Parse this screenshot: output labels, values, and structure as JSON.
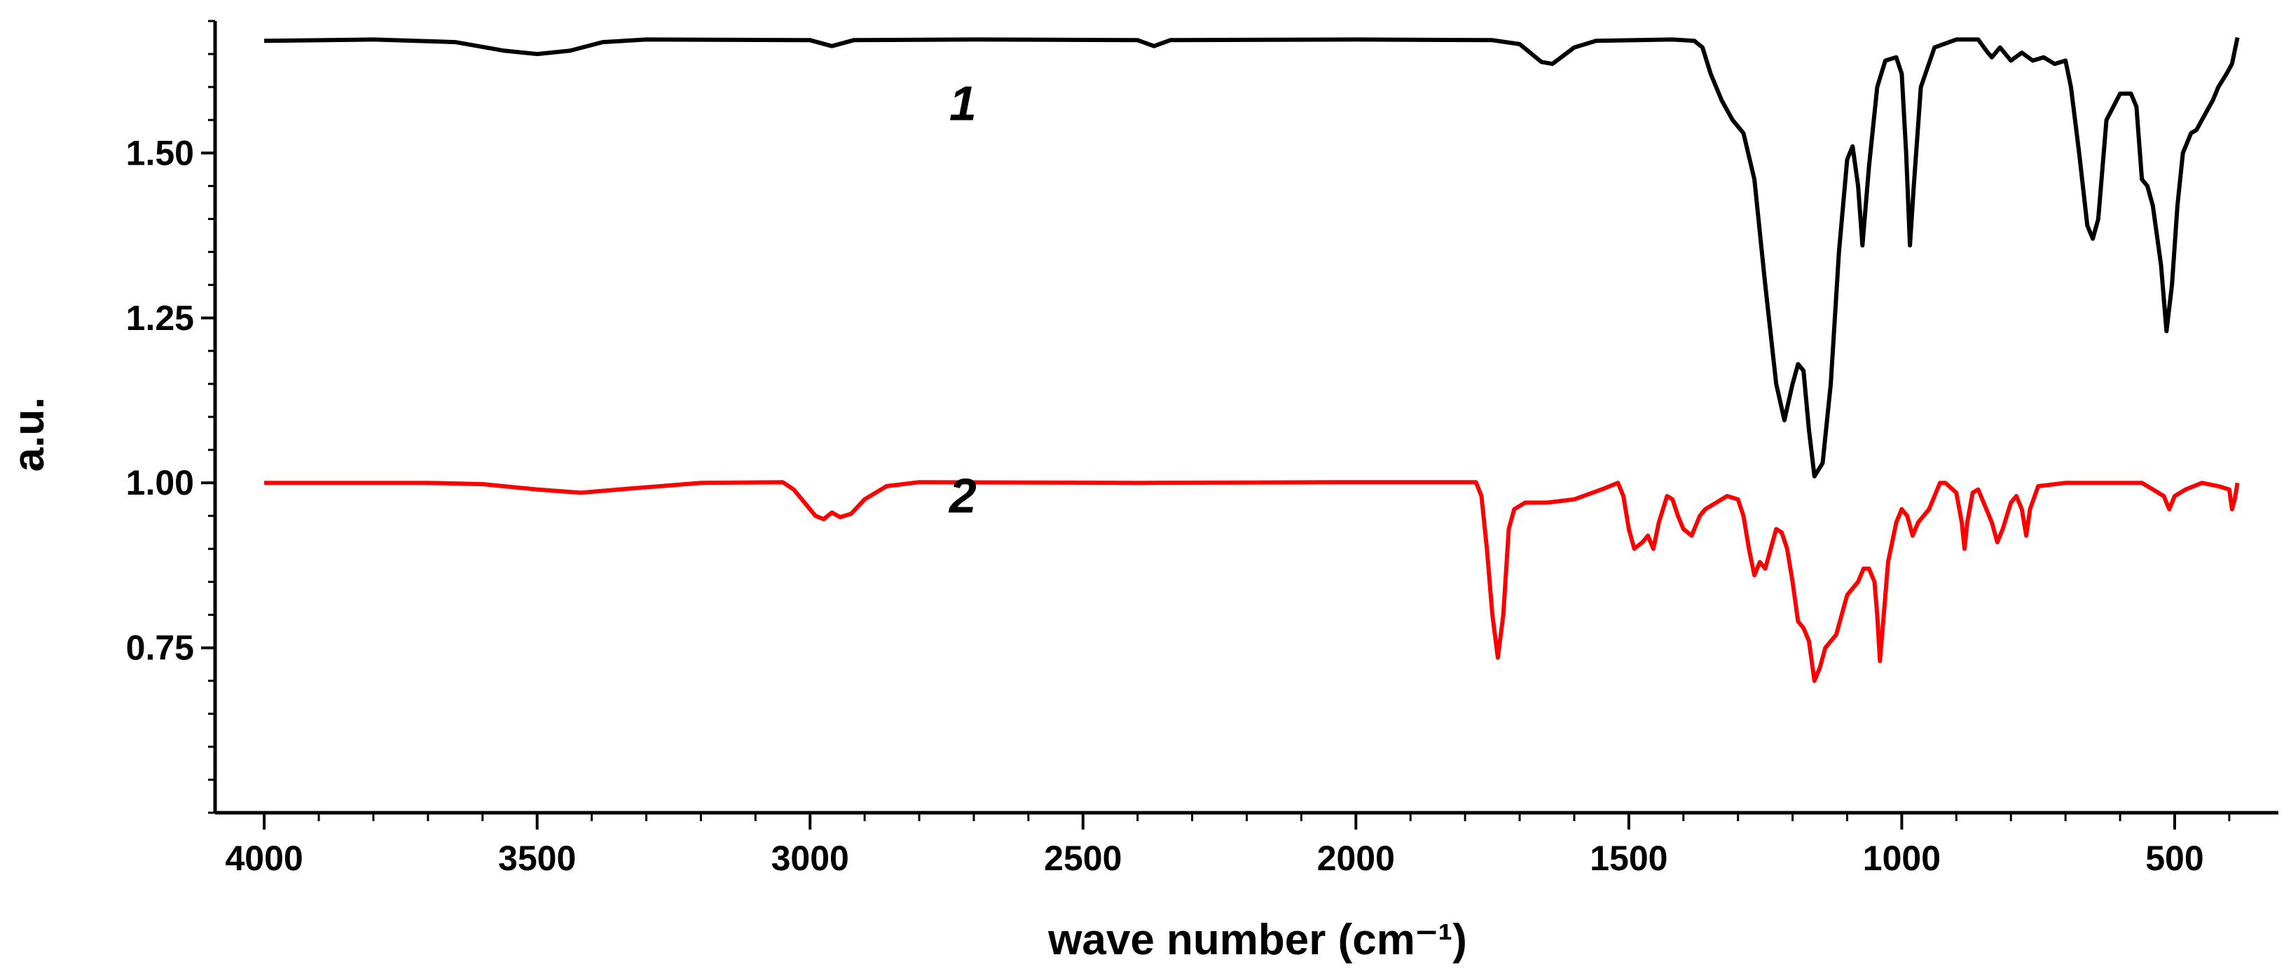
{
  "chart_data": {
    "type": "line",
    "title": "",
    "xlabel": "wave number (cm⁻¹)",
    "ylabel": "a.u.",
    "xlim": [
      4090,
      310
    ],
    "ylim": [
      0.5,
      1.7
    ],
    "x_ticks": [
      {
        "value": 4000,
        "label": "4000"
      },
      {
        "value": 3500,
        "label": "3500"
      },
      {
        "value": 3000,
        "label": "3000"
      },
      {
        "value": 2500,
        "label": "2500"
      },
      {
        "value": 2000,
        "label": "2000"
      },
      {
        "value": 1500,
        "label": "1500"
      },
      {
        "value": 1000,
        "label": "1000"
      },
      {
        "value": 500,
        "label": "500"
      }
    ],
    "y_ticks": [
      {
        "value": 0.75,
        "label": "0.75"
      },
      {
        "value": 1.0,
        "label": "1.00"
      },
      {
        "value": 1.25,
        "label": "1.25"
      },
      {
        "value": 1.5,
        "label": "1.50"
      }
    ],
    "grid": false,
    "legend": "inline labels",
    "series": [
      {
        "name": "1",
        "label": "1",
        "label_at": [
          2720,
          1.55
        ],
        "color": "#000000",
        "points": [
          [
            4000,
            1.67
          ],
          [
            3800,
            1.672
          ],
          [
            3650,
            1.668
          ],
          [
            3560,
            1.655
          ],
          [
            3500,
            1.65
          ],
          [
            3440,
            1.655
          ],
          [
            3380,
            1.668
          ],
          [
            3300,
            1.672
          ],
          [
            3000,
            1.671
          ],
          [
            2960,
            1.662
          ],
          [
            2920,
            1.671
          ],
          [
            2700,
            1.672
          ],
          [
            2400,
            1.671
          ],
          [
            2370,
            1.662
          ],
          [
            2340,
            1.671
          ],
          [
            2000,
            1.672
          ],
          [
            1750,
            1.671
          ],
          [
            1700,
            1.665
          ],
          [
            1660,
            1.638
          ],
          [
            1640,
            1.635
          ],
          [
            1600,
            1.66
          ],
          [
            1560,
            1.67
          ],
          [
            1420,
            1.672
          ],
          [
            1380,
            1.67
          ],
          [
            1365,
            1.66
          ],
          [
            1350,
            1.62
          ],
          [
            1330,
            1.58
          ],
          [
            1310,
            1.55
          ],
          [
            1290,
            1.53
          ],
          [
            1270,
            1.46
          ],
          [
            1250,
            1.3
          ],
          [
            1230,
            1.15
          ],
          [
            1215,
            1.095
          ],
          [
            1200,
            1.15
          ],
          [
            1190,
            1.18
          ],
          [
            1180,
            1.17
          ],
          [
            1170,
            1.08
          ],
          [
            1160,
            1.01
          ],
          [
            1145,
            1.03
          ],
          [
            1130,
            1.15
          ],
          [
            1115,
            1.35
          ],
          [
            1100,
            1.49
          ],
          [
            1090,
            1.51
          ],
          [
            1080,
            1.45
          ],
          [
            1072,
            1.36
          ],
          [
            1060,
            1.48
          ],
          [
            1045,
            1.6
          ],
          [
            1030,
            1.64
          ],
          [
            1010,
            1.645
          ],
          [
            1000,
            1.62
          ],
          [
            992,
            1.5
          ],
          [
            985,
            1.36
          ],
          [
            978,
            1.45
          ],
          [
            965,
            1.6
          ],
          [
            940,
            1.66
          ],
          [
            900,
            1.672
          ],
          [
            860,
            1.672
          ],
          [
            845,
            1.655
          ],
          [
            835,
            1.645
          ],
          [
            820,
            1.66
          ],
          [
            800,
            1.64
          ],
          [
            780,
            1.652
          ],
          [
            760,
            1.64
          ],
          [
            740,
            1.645
          ],
          [
            720,
            1.635
          ],
          [
            700,
            1.64
          ],
          [
            690,
            1.6
          ],
          [
            675,
            1.5
          ],
          [
            660,
            1.39
          ],
          [
            650,
            1.37
          ],
          [
            640,
            1.4
          ],
          [
            625,
            1.55
          ],
          [
            600,
            1.59
          ],
          [
            580,
            1.59
          ],
          [
            570,
            1.57
          ],
          [
            560,
            1.46
          ],
          [
            550,
            1.45
          ],
          [
            540,
            1.42
          ],
          [
            525,
            1.33
          ],
          [
            515,
            1.23
          ],
          [
            505,
            1.3
          ],
          [
            495,
            1.42
          ],
          [
            485,
            1.5
          ],
          [
            470,
            1.53
          ],
          [
            460,
            1.535
          ],
          [
            450,
            1.55
          ],
          [
            430,
            1.58
          ],
          [
            420,
            1.6
          ],
          [
            405,
            1.62
          ],
          [
            395,
            1.635
          ],
          [
            385,
            1.675
          ]
        ]
      },
      {
        "name": "2",
        "label": "2",
        "label_at": [
          2720,
          0.955
        ],
        "color": "#ff0000",
        "points": [
          [
            4000,
            1.0
          ],
          [
            3700,
            1.0
          ],
          [
            3600,
            0.998
          ],
          [
            3500,
            0.99
          ],
          [
            3420,
            0.985
          ],
          [
            3350,
            0.99
          ],
          [
            3200,
            1.0
          ],
          [
            3050,
            1.001
          ],
          [
            3030,
            0.99
          ],
          [
            3010,
            0.97
          ],
          [
            2990,
            0.95
          ],
          [
            2975,
            0.945
          ],
          [
            2960,
            0.955
          ],
          [
            2945,
            0.948
          ],
          [
            2925,
            0.953
          ],
          [
            2900,
            0.975
          ],
          [
            2860,
            0.995
          ],
          [
            2800,
            1.001
          ],
          [
            2400,
            1.0
          ],
          [
            2000,
            1.001
          ],
          [
            1780,
            1.001
          ],
          [
            1770,
            0.98
          ],
          [
            1760,
            0.9
          ],
          [
            1750,
            0.8
          ],
          [
            1740,
            0.735
          ],
          [
            1730,
            0.8
          ],
          [
            1720,
            0.93
          ],
          [
            1710,
            0.96
          ],
          [
            1690,
            0.97
          ],
          [
            1650,
            0.97
          ],
          [
            1600,
            0.975
          ],
          [
            1550,
            0.99
          ],
          [
            1520,
            1.0
          ],
          [
            1510,
            0.98
          ],
          [
            1500,
            0.93
          ],
          [
            1490,
            0.9
          ],
          [
            1475,
            0.91
          ],
          [
            1465,
            0.92
          ],
          [
            1455,
            0.9
          ],
          [
            1445,
            0.94
          ],
          [
            1430,
            0.98
          ],
          [
            1420,
            0.975
          ],
          [
            1410,
            0.95
          ],
          [
            1400,
            0.93
          ],
          [
            1385,
            0.92
          ],
          [
            1370,
            0.95
          ],
          [
            1360,
            0.96
          ],
          [
            1340,
            0.97
          ],
          [
            1320,
            0.98
          ],
          [
            1300,
            0.975
          ],
          [
            1290,
            0.95
          ],
          [
            1280,
            0.9
          ],
          [
            1270,
            0.86
          ],
          [
            1260,
            0.88
          ],
          [
            1250,
            0.87
          ],
          [
            1240,
            0.9
          ],
          [
            1230,
            0.93
          ],
          [
            1220,
            0.925
          ],
          [
            1210,
            0.9
          ],
          [
            1200,
            0.85
          ],
          [
            1190,
            0.79
          ],
          [
            1180,
            0.78
          ],
          [
            1170,
            0.76
          ],
          [
            1160,
            0.7
          ],
          [
            1150,
            0.72
          ],
          [
            1140,
            0.75
          ],
          [
            1130,
            0.76
          ],
          [
            1120,
            0.77
          ],
          [
            1110,
            0.8
          ],
          [
            1100,
            0.83
          ],
          [
            1090,
            0.84
          ],
          [
            1080,
            0.85
          ],
          [
            1070,
            0.87
          ],
          [
            1060,
            0.87
          ],
          [
            1050,
            0.85
          ],
          [
            1045,
            0.8
          ],
          [
            1040,
            0.73
          ],
          [
            1035,
            0.78
          ],
          [
            1025,
            0.88
          ],
          [
            1010,
            0.94
          ],
          [
            1000,
            0.96
          ],
          [
            990,
            0.95
          ],
          [
            980,
            0.92
          ],
          [
            970,
            0.94
          ],
          [
            950,
            0.96
          ],
          [
            930,
            1.0
          ],
          [
            920,
            1.0
          ],
          [
            900,
            0.985
          ],
          [
            890,
            0.94
          ],
          [
            885,
            0.9
          ],
          [
            880,
            0.94
          ],
          [
            870,
            0.985
          ],
          [
            860,
            0.99
          ],
          [
            850,
            0.97
          ],
          [
            835,
            0.94
          ],
          [
            825,
            0.91
          ],
          [
            815,
            0.93
          ],
          [
            800,
            0.97
          ],
          [
            790,
            0.98
          ],
          [
            780,
            0.96
          ],
          [
            772,
            0.92
          ],
          [
            765,
            0.96
          ],
          [
            750,
            0.995
          ],
          [
            700,
            1.0
          ],
          [
            600,
            1.0
          ],
          [
            560,
            1.0
          ],
          [
            540,
            0.99
          ],
          [
            520,
            0.98
          ],
          [
            510,
            0.96
          ],
          [
            500,
            0.98
          ],
          [
            480,
            0.99
          ],
          [
            450,
            1.0
          ],
          [
            420,
            0.995
          ],
          [
            400,
            0.99
          ],
          [
            395,
            0.96
          ],
          [
            390,
            0.975
          ],
          [
            385,
            1.0
          ]
        ]
      }
    ]
  }
}
